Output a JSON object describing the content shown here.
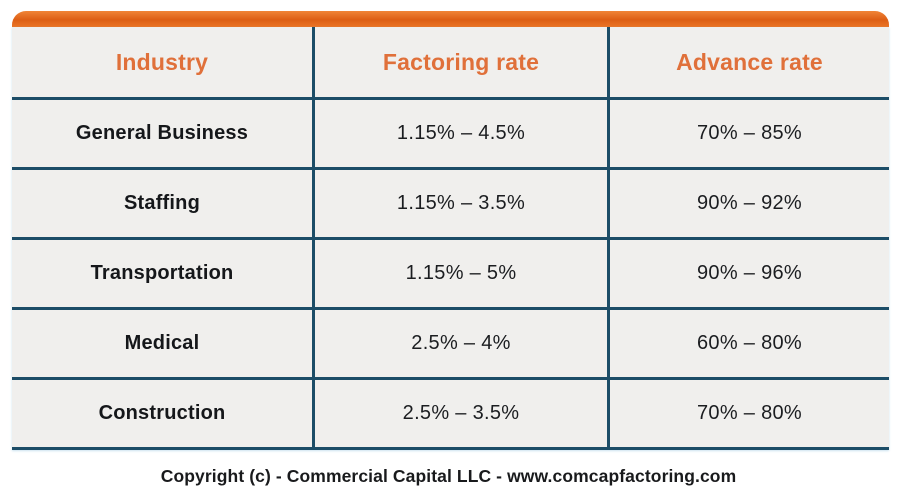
{
  "chart_data": {
    "type": "table",
    "columns": [
      "Industry",
      "Factoring rate",
      "Advance rate"
    ],
    "rows": [
      [
        "General Business",
        "1.15% – 4.5%",
        "70% – 85%"
      ],
      [
        "Staffing",
        "1.15% – 3.5%",
        "90% – 92%"
      ],
      [
        "Transportation",
        "1.15% – 5%",
        "90% – 96%"
      ],
      [
        "Medical",
        "2.5% – 4%",
        "60% – 80%"
      ],
      [
        "Construction",
        "2.5% – 3.5%",
        "70% – 80%"
      ]
    ],
    "title": "",
    "legend": "none",
    "grid": "navy ruled lines between all rows and columns, no outer left/right border"
  },
  "footer": {
    "copyright": "Copyright (c) - Commercial Capital LLC - www.comcapfactoring.com"
  },
  "colors": {
    "accent_orange_bar": "#E56A1E",
    "header_text_orange": "#E0703A",
    "border_navy": "#1C4D67",
    "cell_background": "#F0EFED",
    "body_text": "#15171A",
    "page_background": "#FFFFFF"
  }
}
